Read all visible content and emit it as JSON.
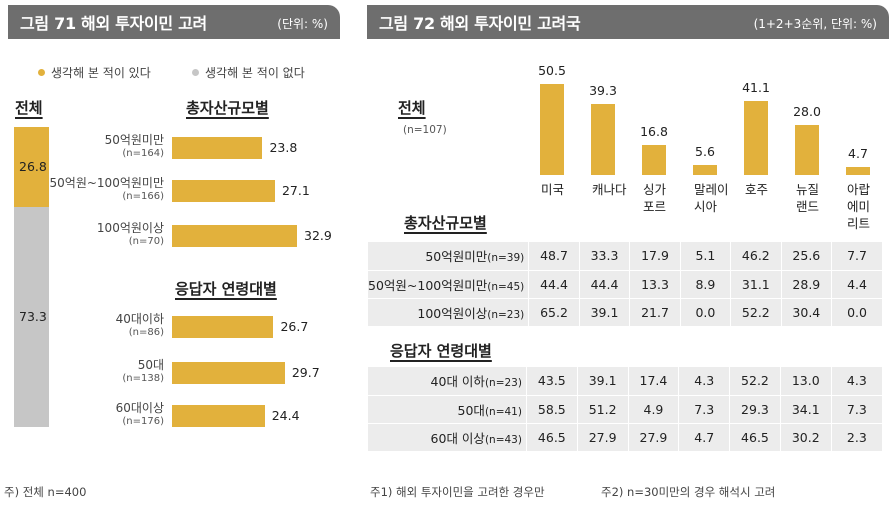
{
  "fig71": {
    "title": "그림 71  해외 투자이민 고려",
    "unit": "(단위: %)",
    "legend": {
      "yes": "생각해 본 적이 있다",
      "no": "생각해 본 적이 없다"
    },
    "total_title": "전체",
    "group1_title": "총자산규모별",
    "group2_title": "응답자 연령대별",
    "note": "주) 전체 n=400"
  },
  "fig72": {
    "title": "그림 72  해외 투자이민 고려국",
    "unit": "(1+2+3순위, 단위: %)",
    "total_title": "전체",
    "total_n": "(n=107)",
    "group1_title": "총자산규모별",
    "group2_title": "응답자 연령대별",
    "note1": "주1) 해외 투자이민을 고려한 경우만",
    "note2": "주2) n=30미만의 경우 해석시 고려"
  },
  "colors": {
    "yes": "#e2b13c",
    "no": "#c6c6c6",
    "header": "#6e6e6e"
  },
  "chart_data": [
    {
      "type": "bar",
      "title": "해외 투자이민 고려",
      "stacked_total": {
        "label": "전체",
        "series": [
          {
            "name": "생각해 본 적이 있다",
            "value": 26.8
          },
          {
            "name": "생각해 본 적이 없다",
            "value": 73.3
          }
        ]
      },
      "groups": [
        {
          "name": "총자산규모별",
          "categories": [
            {
              "label": "50억원미만",
              "n": "(n=164)",
              "value": 23.8
            },
            {
              "label": "50억원~100억원미만",
              "n": "(n=166)",
              "value": 27.1
            },
            {
              "label": "100억원이상",
              "n": "(n=70)",
              "value": 32.9
            }
          ]
        },
        {
          "name": "응답자 연령대별",
          "categories": [
            {
              "label": "40대이하",
              "n": "(n=86)",
              "value": 26.7
            },
            {
              "label": "50대",
              "n": "(n=138)",
              "value": 29.7
            },
            {
              "label": "60대이상",
              "n": "(n=176)",
              "value": 24.4
            }
          ]
        }
      ],
      "ylim": [
        0,
        100
      ]
    },
    {
      "type": "bar",
      "title": "해외 투자이민 고려국",
      "categories": [
        [
          "미국"
        ],
        [
          "캐나다"
        ],
        [
          "싱가",
          "포르"
        ],
        [
          "말레이",
          "시아"
        ],
        [
          "호주"
        ],
        [
          "뉴질",
          "랜드"
        ],
        [
          "아랍",
          "에미",
          "리트"
        ]
      ],
      "values": [
        50.5,
        39.3,
        16.8,
        5.6,
        41.1,
        28.0,
        4.7
      ],
      "value_labels": [
        "50.5",
        "39.3",
        "16.8",
        "5.6",
        "41.1",
        "28.0",
        "4.7"
      ],
      "table": [
        {
          "group": "총자산규모별",
          "rows": [
            {
              "label": "50억원미만",
              "n": "(n=39)",
              "values": [
                "48.7",
                "33.3",
                "17.9",
                "5.1",
                "46.2",
                "25.6",
                "7.7"
              ]
            },
            {
              "label": "50억원~100억원미만",
              "n": "(n=45)",
              "values": [
                "44.4",
                "44.4",
                "13.3",
                "8.9",
                "31.1",
                "28.9",
                "4.4"
              ]
            },
            {
              "label": "100억원이상",
              "n": "(n=23)",
              "values": [
                "65.2",
                "39.1",
                "21.7",
                "0.0",
                "52.2",
                "30.4",
                "0.0"
              ]
            }
          ]
        },
        {
          "group": "응답자 연령대별",
          "rows": [
            {
              "label": "40대 이하",
              "n": "(n=23)",
              "values": [
                "43.5",
                "39.1",
                "17.4",
                "4.3",
                "52.2",
                "13.0",
                "4.3"
              ]
            },
            {
              "label": "50대",
              "n": "(n=41)",
              "values": [
                "58.5",
                "51.2",
                "4.9",
                "7.3",
                "29.3",
                "34.1",
                "7.3"
              ]
            },
            {
              "label": "60대 이상",
              "n": "(n=43)",
              "values": [
                "46.5",
                "27.9",
                "27.9",
                "4.7",
                "46.5",
                "30.2",
                "2.3"
              ]
            }
          ]
        }
      ]
    }
  ]
}
